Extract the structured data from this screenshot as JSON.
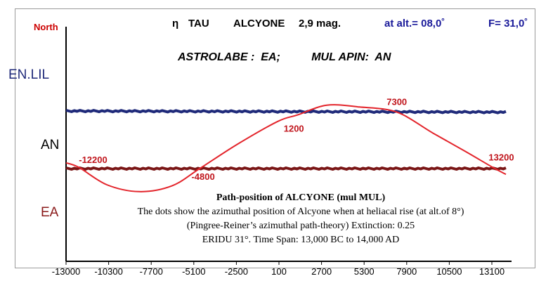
{
  "header": {
    "star_symbol": "η",
    "star_code": "TAU",
    "star_name": "ALCYONE",
    "magnitude": "2,9 mag.",
    "altitude": "at alt.= 08,0˚",
    "f_value": "F= 31,0˚",
    "north_label": "North",
    "subtitle": "ASTROLABE :  EA;          MUL APIN:  AN"
  },
  "zones": {
    "enlil": "EN.LIL",
    "an": "AN",
    "ea": "EA"
  },
  "caption": {
    "line1": "Path-position of  ALCYONE (mul MUL)",
    "line2": "The dots show the azimuthal position of Alcyone when at heliacal rise (at alt.of 8°)",
    "line3": "(Pingree-Reiner’s azimuthal path-theory) Extinction: 0.25",
    "line4": "ERIDU 31°.  Time Span: 13,000 BC to 14,000 AD"
  },
  "colors": {
    "blue_line": "#1f2a7a",
    "darkred_line": "#7a1616",
    "curve": "#e3242b",
    "enlil_text": "#1f2a7a",
    "ea_text": "#8a1a1a",
    "north_text": "#cc0000",
    "header_blue": "#1a1a9a"
  },
  "chart_data": {
    "type": "line",
    "x_ticks": [
      "-13000",
      "-10300",
      "-7700",
      "-5100",
      "-2500",
      "100",
      "2700",
      "5300",
      "7900",
      "10500",
      "13100"
    ],
    "xlim": [
      -13000,
      14000
    ],
    "series": [
      {
        "style": "sinusoid",
        "x": [
          -13000,
          -12200,
          -10500,
          -8500,
          -6500,
          -4800,
          -2500,
          0,
          1200,
          3000,
          5000,
          7300,
          9500,
          11500,
          13200,
          14000
        ],
        "y": [
          0.1,
          0.02,
          -0.28,
          -0.4,
          -0.3,
          0.0,
          0.42,
          0.82,
          0.93,
          1.1,
          1.07,
          0.98,
          0.62,
          0.3,
          0.02,
          -0.1
        ]
      },
      {
        "style": "flat-band",
        "x": [
          -13000,
          14000
        ],
        "y": [
          1.0,
          0.98
        ]
      },
      {
        "style": "flat-band",
        "x": [
          -13000,
          14000
        ],
        "y": [
          0.0,
          0.0
        ]
      }
    ],
    "annotations": [
      {
        "text": "-12200",
        "x": -12200
      },
      {
        "text": "-4800",
        "x": -4800
      },
      {
        "text": "1200",
        "x": 1200
      },
      {
        "text": "7300",
        "x": 7300
      },
      {
        "text": "13200",
        "x": 13200
      }
    ]
  }
}
